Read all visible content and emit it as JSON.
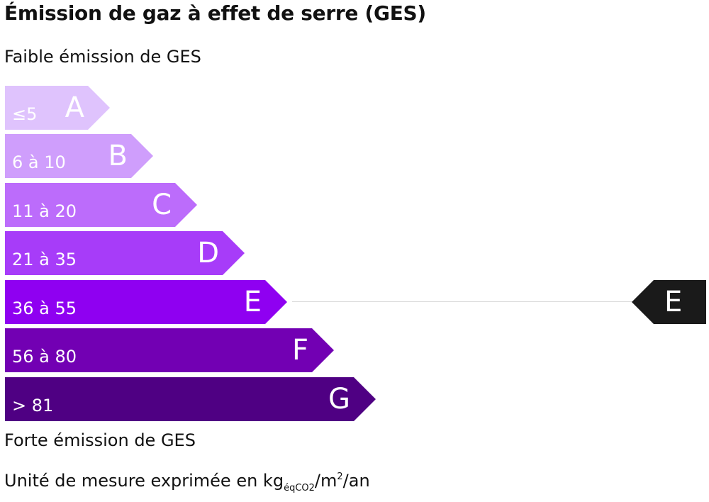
{
  "title": "Émission de gaz à effet de serre (GES)",
  "top_label": "Faible émission de GES",
  "bottom_label": "Forte émission de GES",
  "unit": {
    "prefix": "Unité de mesure exprimée en kg",
    "subscript": "éqCO2",
    "middle": "/m",
    "superscript": "2",
    "suffix": "/an"
  },
  "classes": [
    {
      "letter": "A",
      "range": "≤5",
      "color": "#dfc3fd"
    },
    {
      "letter": "B",
      "range": "6 à 10",
      "color": "#cf9efc"
    },
    {
      "letter": "C",
      "range": "11 à 20",
      "color": "#bc6cfb"
    },
    {
      "letter": "D",
      "range": "21 à 35",
      "color": "#a73cf9"
    },
    {
      "letter": "E",
      "range": "36 à 55",
      "color": "#8f00f1"
    },
    {
      "letter": "F",
      "range": "56 à 80",
      "color": "#7200b3"
    },
    {
      "letter": "G",
      "range": "> 81",
      "color": "#4f0083"
    }
  ],
  "current": {
    "letter": "E",
    "color": "#1a1a1a"
  }
}
